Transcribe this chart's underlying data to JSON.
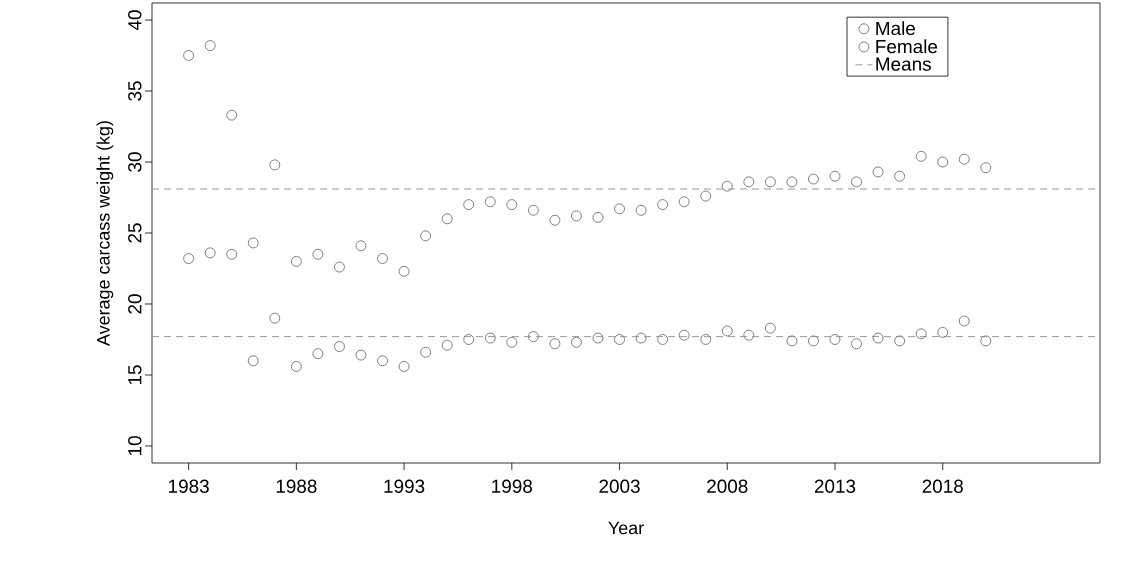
{
  "chart_data": {
    "type": "scatter",
    "xlabel": "Year",
    "ylabel": "Average carcass weight (kg)",
    "x": [
      1983,
      1984,
      1985,
      1986,
      1987,
      1988,
      1989,
      1990,
      1991,
      1992,
      1993,
      1994,
      1995,
      1996,
      1997,
      1998,
      1999,
      2000,
      2001,
      2002,
      2003,
      2004,
      2005,
      2006,
      2007,
      2008,
      2009,
      2010,
      2011,
      2012,
      2013,
      2014,
      2015,
      2016,
      2017,
      2018,
      2019,
      2020
    ],
    "series": [
      {
        "name": "Male",
        "color": "#7f7f7f",
        "marker": "circle",
        "values": [
          37.5,
          38.2,
          33.3,
          24.3,
          29.8,
          23.0,
          23.5,
          22.6,
          24.1,
          23.2,
          22.3,
          24.8,
          26.0,
          27.0,
          27.2,
          27.0,
          26.6,
          25.9,
          26.2,
          26.1,
          26.7,
          26.6,
          27.0,
          27.2,
          27.6,
          28.3,
          28.6,
          28.6,
          28.6,
          28.8,
          29.0,
          28.6,
          29.3,
          29.0,
          30.4,
          30.0,
          30.2,
          29.6
        ]
      },
      {
        "name": "Female",
        "color": "#7f7f7f",
        "marker": "circle",
        "values": [
          23.2,
          23.6,
          23.5,
          16.0,
          19.0,
          15.6,
          16.5,
          17.0,
          16.4,
          16.0,
          15.6,
          16.6,
          17.1,
          17.5,
          17.6,
          17.3,
          17.7,
          17.2,
          17.3,
          17.6,
          17.5,
          17.6,
          17.5,
          17.8,
          17.5,
          18.1,
          17.8,
          18.3,
          17.4,
          17.4,
          17.5,
          17.2,
          17.6,
          17.4,
          17.9,
          18.0,
          18.8,
          17.4
        ]
      }
    ],
    "ref_lines": [
      {
        "axis": "y",
        "value": 28.1,
        "label": "Means",
        "color": "#7f7f7f",
        "line_style": "dashed"
      },
      {
        "axis": "y",
        "value": 17.7,
        "color": "#7f7f7f",
        "line_style": "dashed"
      }
    ],
    "xlim": [
      1981.3,
      2025.3
    ],
    "ylim": [
      8.8,
      41.2
    ],
    "xticks": [
      1983,
      1988,
      1993,
      1998,
      2003,
      2008,
      2013,
      2018
    ],
    "yticks": [
      10,
      15,
      20,
      25,
      30,
      35,
      40
    ],
    "legend": "top right"
  }
}
